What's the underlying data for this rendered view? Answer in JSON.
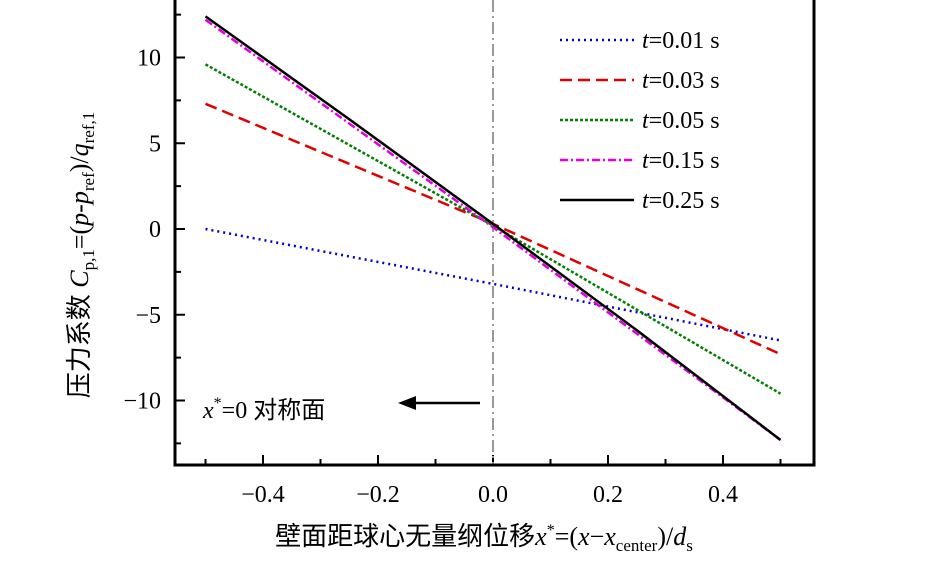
{
  "chart_data": {
    "type": "line",
    "title": "",
    "xlabel": "壁面距球心无量纲位移x*=(x−x_center)/d_s",
    "xlabel_parts": {
      "prefix": "壁面距球心无量纲位移",
      "var": "x",
      "sup": "*",
      "eq": "=(",
      "var2": "x",
      "minus": "−",
      "var3": "x",
      "sub": "center",
      "close": ")/",
      "var4": "d",
      "sub2": "s"
    },
    "ylabel": "压力系数 C_p,1=(p-p_ref)/q_ref,1",
    "ylabel_parts": {
      "prefix": "压力系数 ",
      "C": "C",
      "sub1": "p,1",
      "eq": "=(",
      "p1": "p",
      "dash": "-",
      "p2": "p",
      "sub2": "ref",
      "close": ")/",
      "q": "q",
      "sub3": "ref,1"
    },
    "xlim": [
      -0.553,
      0.557
    ],
    "ylim": [
      -13.76,
      13.35
    ],
    "xticks": [
      -0.4,
      -0.2,
      0.0,
      0.2,
      0.4
    ],
    "xtick_labels": [
      "−0.4",
      "−0.2",
      "0.0",
      "0.2",
      "0.4"
    ],
    "yticks": [
      10,
      5,
      0,
      -5,
      -10
    ],
    "ytick_labels": [
      "10",
      "5",
      "0",
      "−5",
      "−10"
    ],
    "legend_position": "top-right",
    "series": [
      {
        "name": "t=0.01 s",
        "t": "t",
        "rest": "=0.01 s",
        "color": "#0000d0",
        "dash": "2,4",
        "x": [
          -0.5,
          0,
          0.5
        ],
        "y": [
          0.0,
          -3.2,
          -6.5
        ]
      },
      {
        "name": "t=0.03 s",
        "t": "t",
        "rest": "=0.03 s",
        "color": "#e00000",
        "dash": "12,6",
        "x": [
          -0.5,
          0,
          0.5
        ],
        "y": [
          7.3,
          0.3,
          -7.3
        ]
      },
      {
        "name": "t=0.05 s",
        "t": "t",
        "rest": "=0.05 s",
        "color": "#008000",
        "dash": "3,2",
        "x": [
          -0.5,
          0,
          0.5
        ],
        "y": [
          9.6,
          0.2,
          -9.6
        ]
      },
      {
        "name": "t=0.15 s",
        "t": "t",
        "rest": "=0.15 s",
        "color": "#e000e0",
        "dash": "8,3,2,3",
        "x": [
          -0.5,
          0,
          0.5
        ],
        "y": [
          12.2,
          0.1,
          -12.3
        ]
      },
      {
        "name": "t=0.25 s",
        "t": "t",
        "rest": "=0.25 s",
        "color": "#000000",
        "dash": "",
        "x": [
          -0.5,
          -0.25,
          0,
          0.25,
          0.5
        ],
        "y": [
          12.4,
          6.4,
          0.3,
          -5.9,
          -12.3
        ]
      }
    ],
    "reference_line": {
      "x": 0,
      "color": "#999999"
    },
    "annotation": {
      "var": "x",
      "sup": "*",
      "text": "=0 对称面",
      "arrow": "left"
    }
  }
}
